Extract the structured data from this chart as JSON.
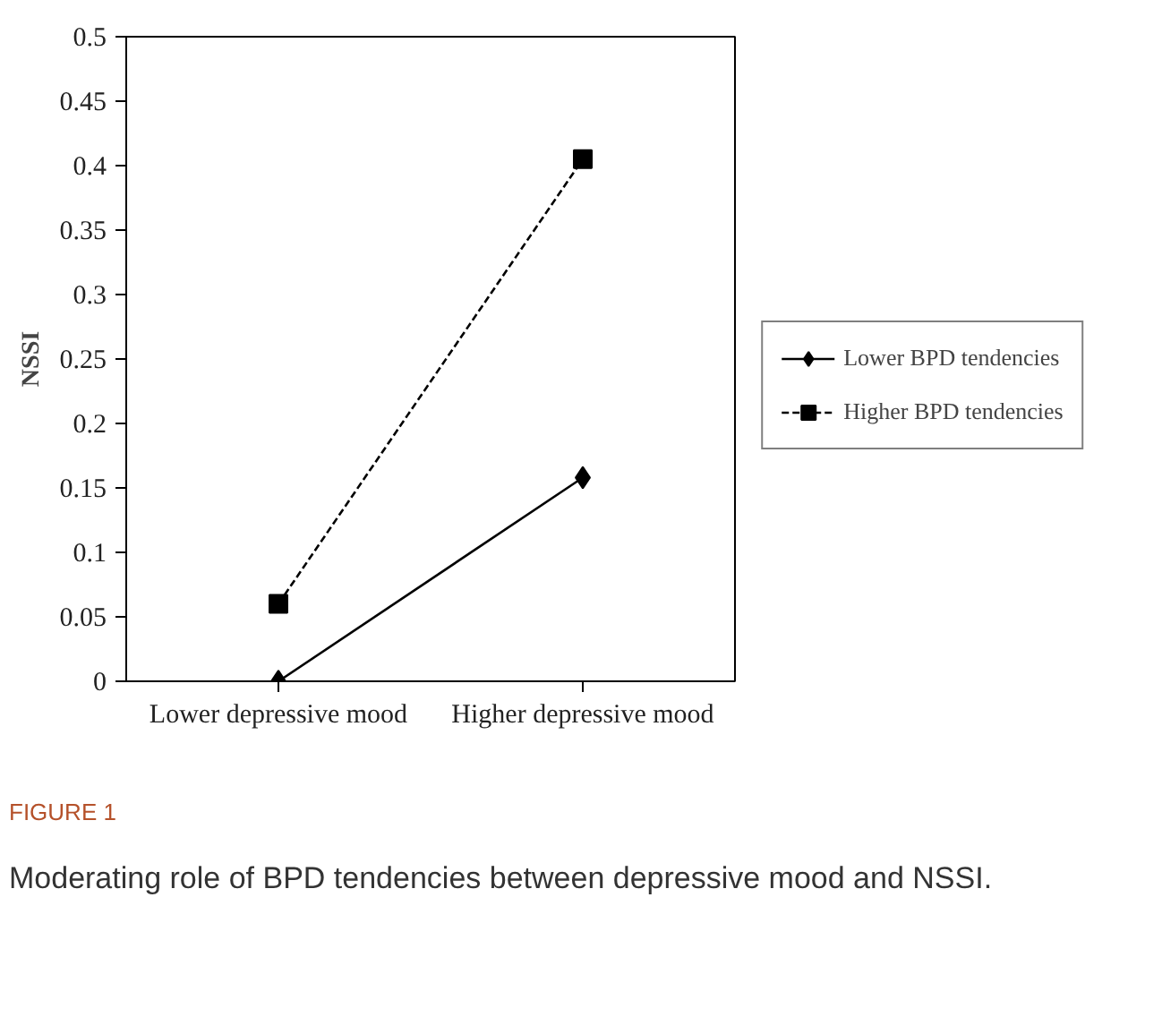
{
  "chart_data": {
    "type": "line",
    "ylabel": "NSSI",
    "categories": [
      "Lower depressive mood",
      "Higher depressive mood"
    ],
    "series": [
      {
        "name": "Lower BPD tendencies",
        "color": "#000000",
        "values": [
          0,
          0.158
        ],
        "marker": "diamond",
        "line_style": "solid"
      },
      {
        "name": "Higher BPD tendencies",
        "color": "#000000",
        "values": [
          0.06,
          0.405
        ],
        "marker": "square",
        "line_style": "dashed"
      }
    ],
    "ylim": [
      0,
      0.5
    ],
    "yticks": [
      0,
      0.05,
      0.1,
      0.15,
      0.2,
      0.25,
      0.3,
      0.35,
      0.4,
      0.45,
      0.5
    ],
    "grid": false,
    "legend": "right",
    "annotations": [
      "FIGURE 1",
      "Moderating role of BPD tendencies between depressive mood and NSSI."
    ]
  }
}
